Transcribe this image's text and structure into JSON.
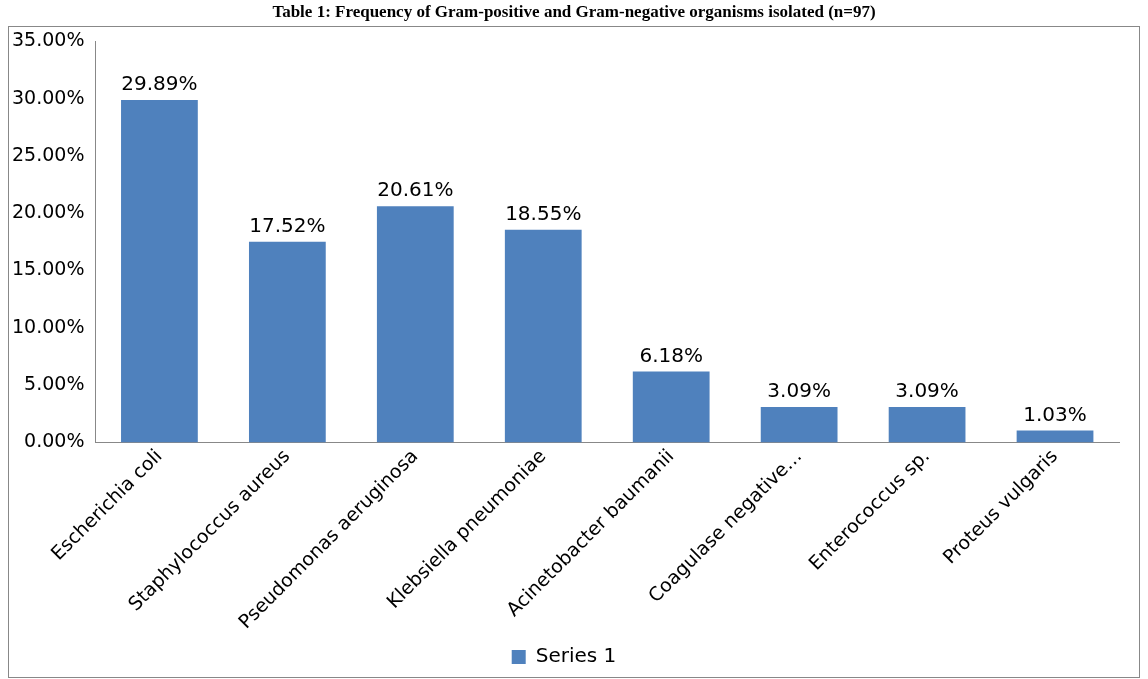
{
  "chart_data": {
    "type": "bar",
    "title": "Table 1: Frequency of Gram-positive and Gram-negative organisms isolated (n=97)",
    "categories": [
      "Escherichia coli",
      "Staphylococcus aureus",
      "Pseudomonas aeruginosa",
      "Klebsiella pneumoniae",
      "Acinetobacter baumanii",
      "Coagulase negative…",
      "Enterococcus sp.",
      "Proteus vulgaris"
    ],
    "series": [
      {
        "name": "Series 1",
        "color": "#4f81bd",
        "values": [
          29.89,
          17.52,
          20.61,
          18.55,
          6.18,
          3.09,
          3.09,
          1.03
        ],
        "value_labels": [
          "29.89%",
          "17.52%",
          "20.61%",
          "18.55%",
          "6.18%",
          "3.09%",
          "3.09%",
          "1.03%"
        ]
      }
    ],
    "ylim": [
      0,
      35
    ],
    "yticks": [
      {
        "value": 0,
        "label": "0.00%"
      },
      {
        "value": 5,
        "label": "5.00%"
      },
      {
        "value": 10,
        "label": "10.00%"
      },
      {
        "value": 15,
        "label": "15.00%"
      },
      {
        "value": 20,
        "label": "20.00%"
      },
      {
        "value": 25,
        "label": "25.00%"
      },
      {
        "value": 30,
        "label": "30.00%"
      },
      {
        "value": 35,
        "label": "35.00%"
      }
    ],
    "grid": false,
    "legend": "bottom"
  }
}
